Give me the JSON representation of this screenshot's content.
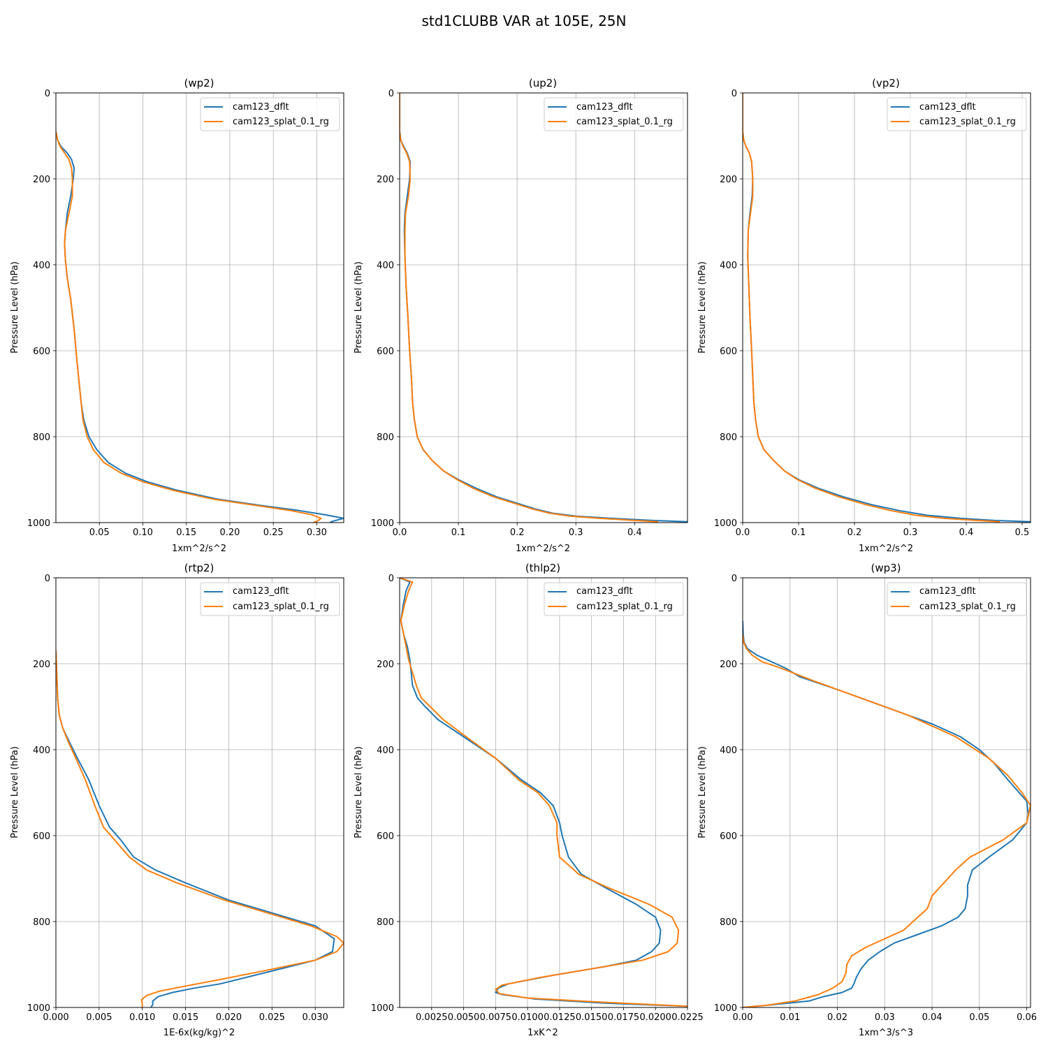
{
  "suptitle": "std1CLUBB VAR at 105E, 25N",
  "colors": {
    "cam123_dflt": "#1f77b4",
    "cam123_splat_0.1_rg": "#ff7f0e",
    "grid": "#b0b0b0"
  },
  "chart_data": [
    {
      "type": "line",
      "title": "(wp2)",
      "xlabel": "1xm^2/s^2",
      "ylabel": "Pressure Level (hPa)",
      "xlim": [
        0.0,
        0.331
      ],
      "ylim": [
        1000,
        0
      ],
      "xticks": [
        "0.05",
        "0.10",
        "0.15",
        "0.20",
        "0.25",
        "0.30"
      ],
      "yticks": [
        "0",
        "200",
        "400",
        "600",
        "800",
        "1000"
      ],
      "grid": true,
      "legend_loc": "upper right",
      "series": [
        {
          "name": "cam123_dflt",
          "x": [
            0.0,
            0.002,
            0.006,
            0.013,
            0.018,
            0.021,
            0.02,
            0.017,
            0.013,
            0.011,
            0.01,
            0.011,
            0.013,
            0.017,
            0.021,
            0.024,
            0.027,
            0.029,
            0.032,
            0.038,
            0.047,
            0.06,
            0.08,
            0.105,
            0.14,
            0.185,
            0.235,
            0.28,
            0.31,
            0.331,
            0.318,
            0.315
          ],
          "y": [
            90,
            110,
            125,
            140,
            155,
            175,
            200,
            240,
            280,
            320,
            350,
            390,
            430,
            480,
            550,
            620,
            680,
            720,
            760,
            800,
            830,
            860,
            885,
            905,
            925,
            945,
            960,
            972,
            982,
            990,
            997,
            1000
          ]
        },
        {
          "name": "cam123_splat_0.1_rg",
          "x": [
            0.0,
            0.002,
            0.005,
            0.01,
            0.015,
            0.018,
            0.019,
            0.019,
            0.015,
            0.011,
            0.01,
            0.011,
            0.013,
            0.017,
            0.021,
            0.024,
            0.027,
            0.029,
            0.031,
            0.036,
            0.043,
            0.055,
            0.075,
            0.1,
            0.135,
            0.18,
            0.23,
            0.27,
            0.295,
            0.305,
            0.3,
            0.296
          ],
          "y": [
            90,
            110,
            125,
            140,
            155,
            175,
            200,
            240,
            280,
            320,
            350,
            390,
            430,
            480,
            550,
            620,
            680,
            720,
            760,
            800,
            830,
            860,
            885,
            905,
            925,
            945,
            960,
            972,
            982,
            990,
            997,
            1000
          ]
        }
      ]
    },
    {
      "type": "line",
      "title": "(up2)",
      "xlabel": "1xm^2/s^2",
      "ylabel": "Pressure Level (hPa)",
      "xlim": [
        0.0,
        0.49
      ],
      "ylim": [
        1000,
        0
      ],
      "xticks": [
        "0.0",
        "0.1",
        "0.2",
        "0.3",
        "0.4"
      ],
      "yticks": [
        "0",
        "200",
        "400",
        "600",
        "800",
        "1000"
      ],
      "grid": true,
      "legend_loc": "upper right",
      "series": [
        {
          "name": "cam123_dflt",
          "x": [
            0.0,
            0.0,
            0.002,
            0.007,
            0.013,
            0.018,
            0.017,
            0.013,
            0.009,
            0.008,
            0.009,
            0.011,
            0.014,
            0.017,
            0.02,
            0.022,
            0.025,
            0.03,
            0.04,
            0.055,
            0.075,
            0.1,
            0.13,
            0.165,
            0.2,
            0.23,
            0.26,
            0.3,
            0.36,
            0.43,
            0.49
          ],
          "y": [
            0,
            90,
            110,
            125,
            140,
            160,
            200,
            240,
            280,
            320,
            380,
            450,
            520,
            600,
            660,
            720,
            760,
            800,
            830,
            855,
            880,
            900,
            920,
            940,
            955,
            968,
            978,
            985,
            990,
            995,
            998
          ]
        },
        {
          "name": "cam123_splat_0.1_rg",
          "x": [
            0.0,
            0.0,
            0.002,
            0.006,
            0.012,
            0.017,
            0.018,
            0.015,
            0.01,
            0.009,
            0.009,
            0.011,
            0.014,
            0.017,
            0.02,
            0.022,
            0.025,
            0.03,
            0.04,
            0.055,
            0.075,
            0.098,
            0.125,
            0.16,
            0.195,
            0.225,
            0.255,
            0.29,
            0.34,
            0.4,
            0.44
          ],
          "y": [
            0,
            90,
            110,
            125,
            140,
            160,
            200,
            240,
            280,
            320,
            380,
            450,
            520,
            600,
            660,
            720,
            760,
            800,
            830,
            855,
            880,
            900,
            920,
            940,
            955,
            968,
            978,
            985,
            990,
            995,
            998
          ]
        }
      ]
    },
    {
      "type": "line",
      "title": "(vp2)",
      "xlabel": "1xm^2/s^2",
      "ylabel": "Pressure Level (hPa)",
      "xlim": [
        0.0,
        0.515
      ],
      "ylim": [
        1000,
        0
      ],
      "xticks": [
        "0.0",
        "0.1",
        "0.2",
        "0.3",
        "0.4",
        "0.5"
      ],
      "yticks": [
        "0",
        "200",
        "400",
        "600",
        "800",
        "1000"
      ],
      "grid": true,
      "legend_loc": "upper right",
      "series": [
        {
          "name": "cam123_dflt",
          "x": [
            0.0,
            0.0,
            0.002,
            0.006,
            0.012,
            0.016,
            0.018,
            0.017,
            0.013,
            0.01,
            0.009,
            0.011,
            0.013,
            0.016,
            0.018,
            0.02,
            0.023,
            0.028,
            0.038,
            0.055,
            0.075,
            0.1,
            0.135,
            0.18,
            0.23,
            0.28,
            0.33,
            0.39,
            0.45,
            0.515
          ],
          "y": [
            0,
            90,
            110,
            125,
            140,
            160,
            200,
            240,
            280,
            320,
            380,
            450,
            520,
            600,
            660,
            720,
            760,
            800,
            830,
            855,
            880,
            900,
            920,
            940,
            958,
            972,
            983,
            990,
            995,
            998
          ]
        },
        {
          "name": "cam123_splat_0.1_rg",
          "x": [
            0.0,
            0.0,
            0.002,
            0.006,
            0.012,
            0.016,
            0.018,
            0.018,
            0.014,
            0.01,
            0.009,
            0.011,
            0.013,
            0.016,
            0.018,
            0.02,
            0.023,
            0.028,
            0.038,
            0.055,
            0.075,
            0.098,
            0.13,
            0.172,
            0.22,
            0.265,
            0.31,
            0.36,
            0.42,
            0.46
          ],
          "y": [
            0,
            90,
            110,
            125,
            140,
            160,
            200,
            240,
            280,
            320,
            380,
            450,
            520,
            600,
            660,
            720,
            760,
            800,
            830,
            855,
            880,
            900,
            920,
            940,
            958,
            972,
            983,
            990,
            995,
            998
          ]
        }
      ]
    },
    {
      "type": "line",
      "title": "(rtp2)",
      "xlabel": "1E-6x(kg/kg)^2",
      "ylabel": "Pressure Level (hPa)",
      "xlim": [
        0.0,
        0.0333
      ],
      "ylim": [
        1000,
        0
      ],
      "xticks": [
        "0.000",
        "0.005",
        "0.010",
        "0.015",
        "0.020",
        "0.025",
        "0.030"
      ],
      "yticks": [
        "0",
        "200",
        "400",
        "600",
        "800",
        "1000"
      ],
      "grid": true,
      "legend_loc": "upper right",
      "series": [
        {
          "name": "cam123_dflt",
          "x": [
            0.0,
            0.0001,
            0.0002,
            0.0004,
            0.0008,
            0.0015,
            0.0025,
            0.0038,
            0.005,
            0.0062,
            0.0075,
            0.009,
            0.0115,
            0.015,
            0.02,
            0.025,
            0.03,
            0.0322,
            0.032,
            0.03,
            0.027,
            0.023,
            0.019,
            0.016,
            0.0135,
            0.0118,
            0.0112,
            0.0112,
            0.011
          ],
          "y": [
            170,
            220,
            280,
            320,
            350,
            380,
            420,
            470,
            530,
            580,
            610,
            650,
            680,
            710,
            750,
            780,
            810,
            840,
            870,
            890,
            905,
            925,
            945,
            955,
            965,
            975,
            985,
            993,
            1000
          ]
        },
        {
          "name": "cam123_splat_0.1_rg",
          "x": [
            0.0,
            0.0001,
            0.0002,
            0.0004,
            0.0008,
            0.0014,
            0.0023,
            0.0034,
            0.0045,
            0.0055,
            0.0068,
            0.0085,
            0.0105,
            0.014,
            0.0195,
            0.0245,
            0.0295,
            0.0325,
            0.0333,
            0.0325,
            0.03,
            0.024,
            0.019,
            0.015,
            0.012,
            0.0105,
            0.0099,
            0.01,
            0.01
          ],
          "y": [
            170,
            220,
            280,
            320,
            350,
            380,
            420,
            470,
            530,
            580,
            610,
            650,
            680,
            710,
            750,
            780,
            810,
            835,
            850,
            870,
            890,
            915,
            935,
            950,
            962,
            972,
            982,
            992,
            1000
          ]
        }
      ]
    },
    {
      "type": "line",
      "title": "(thlp2)",
      "xlabel": "1xK^2",
      "ylabel": "Pressure Level (hPa)",
      "xlim": [
        0.0,
        0.0225
      ],
      "ylim": [
        1000,
        0
      ],
      "xticks": [
        "0.0025",
        "0.0050",
        "0.0075",
        "0.0100",
        "0.0125",
        "0.0150",
        "0.0175",
        "0.0200",
        "0.0225"
      ],
      "yticks": [
        "0",
        "200",
        "400",
        "600",
        "800",
        "1000"
      ],
      "grid": true,
      "legend_loc": "upper right",
      "series": [
        {
          "name": "cam123_dflt",
          "x": [
            0.0,
            0.0008,
            0.0005,
            0.0003,
            0.0001,
            0.0003,
            0.0006,
            0.0008,
            0.0009,
            0.001,
            0.0014,
            0.002,
            0.003,
            0.005,
            0.0075,
            0.0095,
            0.011,
            0.012,
            0.0125,
            0.0127,
            0.0132,
            0.0142,
            0.016,
            0.0185,
            0.02,
            0.0204,
            0.0203,
            0.0197,
            0.0185,
            0.016,
            0.012,
            0.0085,
            0.0077,
            0.0075,
            0.008,
            0.0105,
            0.016,
            0.0225
          ],
          "y": [
            0,
            10,
            30,
            60,
            100,
            130,
            160,
            190,
            220,
            250,
            280,
            300,
            330,
            370,
            420,
            470,
            500,
            530,
            570,
            600,
            650,
            690,
            720,
            760,
            790,
            820,
            850,
            870,
            890,
            905,
            925,
            945,
            955,
            965,
            970,
            980,
            990,
            997
          ]
        },
        {
          "name": "cam123_splat_0.1_rg",
          "x": [
            0.0,
            0.001,
            0.0007,
            0.0004,
            0.0001,
            0.0003,
            0.0005,
            0.0007,
            0.001,
            0.0013,
            0.0017,
            0.0024,
            0.0034,
            0.0052,
            0.0075,
            0.0093,
            0.0108,
            0.0117,
            0.0123,
            0.0123,
            0.0125,
            0.014,
            0.0162,
            0.0195,
            0.0213,
            0.0218,
            0.0217,
            0.021,
            0.019,
            0.015,
            0.011,
            0.008,
            0.0075,
            0.0078,
            0.01,
            0.016,
            0.0225
          ],
          "y": [
            0,
            10,
            30,
            60,
            100,
            130,
            160,
            190,
            220,
            250,
            280,
            300,
            330,
            370,
            420,
            470,
            500,
            530,
            570,
            600,
            650,
            690,
            720,
            760,
            790,
            820,
            850,
            870,
            890,
            910,
            930,
            948,
            958,
            968,
            978,
            988,
            997
          ]
        }
      ]
    },
    {
      "type": "line",
      "title": "(wp3)",
      "xlabel": "1xm^3/s^3",
      "ylabel": "Pressure Level (hPa)",
      "xlim": [
        0.0,
        0.0608
      ],
      "ylim": [
        1000,
        0
      ],
      "xticks": [
        "0.00",
        "0.01",
        "0.02",
        "0.03",
        "0.04",
        "0.05",
        "0.06"
      ],
      "yticks": [
        "0",
        "200",
        "400",
        "600",
        "800",
        "1000"
      ],
      "grid": true,
      "legend_loc": "upper right",
      "series": [
        {
          "name": "cam123_dflt",
          "x": [
            0.0,
            0.0001,
            0.0003,
            0.001,
            0.003,
            0.006,
            0.009,
            0.012,
            0.02,
            0.03,
            0.04,
            0.046,
            0.05,
            0.053,
            0.056,
            0.06,
            0.0603,
            0.06,
            0.057,
            0.052,
            0.0485,
            0.0475,
            0.0475,
            0.047,
            0.0455,
            0.042,
            0.037,
            0.032,
            0.029,
            0.0265,
            0.025,
            0.024,
            0.0235,
            0.023,
            0.021,
            0.017,
            0.014,
            0.005,
            0.0
          ],
          "y": [
            100,
            130,
            150,
            165,
            180,
            195,
            210,
            230,
            260,
            300,
            340,
            370,
            400,
            430,
            470,
            520,
            550,
            570,
            610,
            650,
            680,
            715,
            740,
            770,
            790,
            810,
            830,
            850,
            870,
            890,
            910,
            930,
            945,
            955,
            965,
            975,
            985,
            995,
            1000
          ]
        },
        {
          "name": "cam123_splat_0.1_rg",
          "x": [
            0.0,
            0.0002,
            0.0008,
            0.002,
            0.004,
            0.008,
            0.015,
            0.025,
            0.035,
            0.045,
            0.052,
            0.056,
            0.059,
            0.0608,
            0.06,
            0.055,
            0.048,
            0.045,
            0.0425,
            0.04,
            0.039,
            0.037,
            0.034,
            0.03,
            0.026,
            0.023,
            0.022,
            0.0218,
            0.021,
            0.019,
            0.016,
            0.011,
            0.005,
            0.0
          ],
          "y": [
            130,
            150,
            165,
            180,
            195,
            210,
            240,
            280,
            320,
            370,
            420,
            460,
            500,
            530,
            570,
            610,
            650,
            680,
            710,
            740,
            770,
            790,
            820,
            840,
            860,
            880,
            900,
            920,
            940,
            955,
            970,
            985,
            995,
            1000
          ]
        }
      ]
    }
  ]
}
